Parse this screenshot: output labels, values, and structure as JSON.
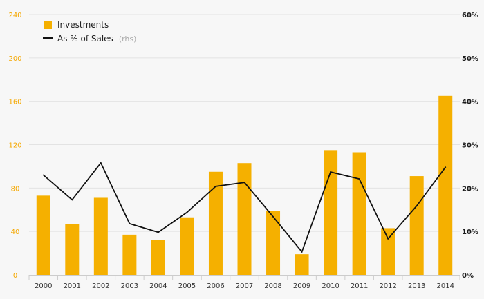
{
  "chart_data": {
    "type": "bar",
    "categories": [
      "2000",
      "2001",
      "2002",
      "2003",
      "2004",
      "2005",
      "2006",
      "2007",
      "2008",
      "2009",
      "2010",
      "2011",
      "2012",
      "2013",
      "2014"
    ],
    "series": [
      {
        "name": "Investments",
        "type": "bar",
        "axis": "left",
        "color": "#f5b000",
        "values": [
          73,
          47,
          71,
          37,
          32,
          53,
          95,
          103,
          59,
          19,
          115,
          113,
          43,
          91,
          165
        ]
      },
      {
        "name": "As % of Sales",
        "type": "line",
        "axis": "right",
        "color": "#111111",
        "values": [
          23.0,
          17.3,
          25.8,
          11.8,
          9.8,
          14.4,
          20.4,
          21.3,
          13.4,
          5.3,
          23.7,
          22.1,
          8.3,
          15.9,
          24.8
        ]
      }
    ],
    "legend": {
      "items": [
        {
          "label": "Investments",
          "suffix": ""
        },
        {
          "label": "As % of Sales",
          "suffix": "(rhs)"
        }
      ],
      "position": "top-left"
    },
    "yleft": {
      "ylim": [
        0,
        240
      ],
      "ticks": [
        0,
        40,
        80,
        120,
        160,
        200,
        240
      ],
      "tick_labels": [
        "0",
        "40",
        "80",
        "120",
        "160",
        "200",
        "240"
      ],
      "color": "#f5a800"
    },
    "yright": {
      "ylim": [
        0,
        60
      ],
      "ticks": [
        0,
        10,
        20,
        30,
        40,
        50,
        60
      ],
      "tick_labels": [
        "0%",
        "10%",
        "20%",
        "30%",
        "40%",
        "50%",
        "60%"
      ]
    },
    "title": "",
    "xlabel": "",
    "ylabel": "",
    "grid": true
  }
}
